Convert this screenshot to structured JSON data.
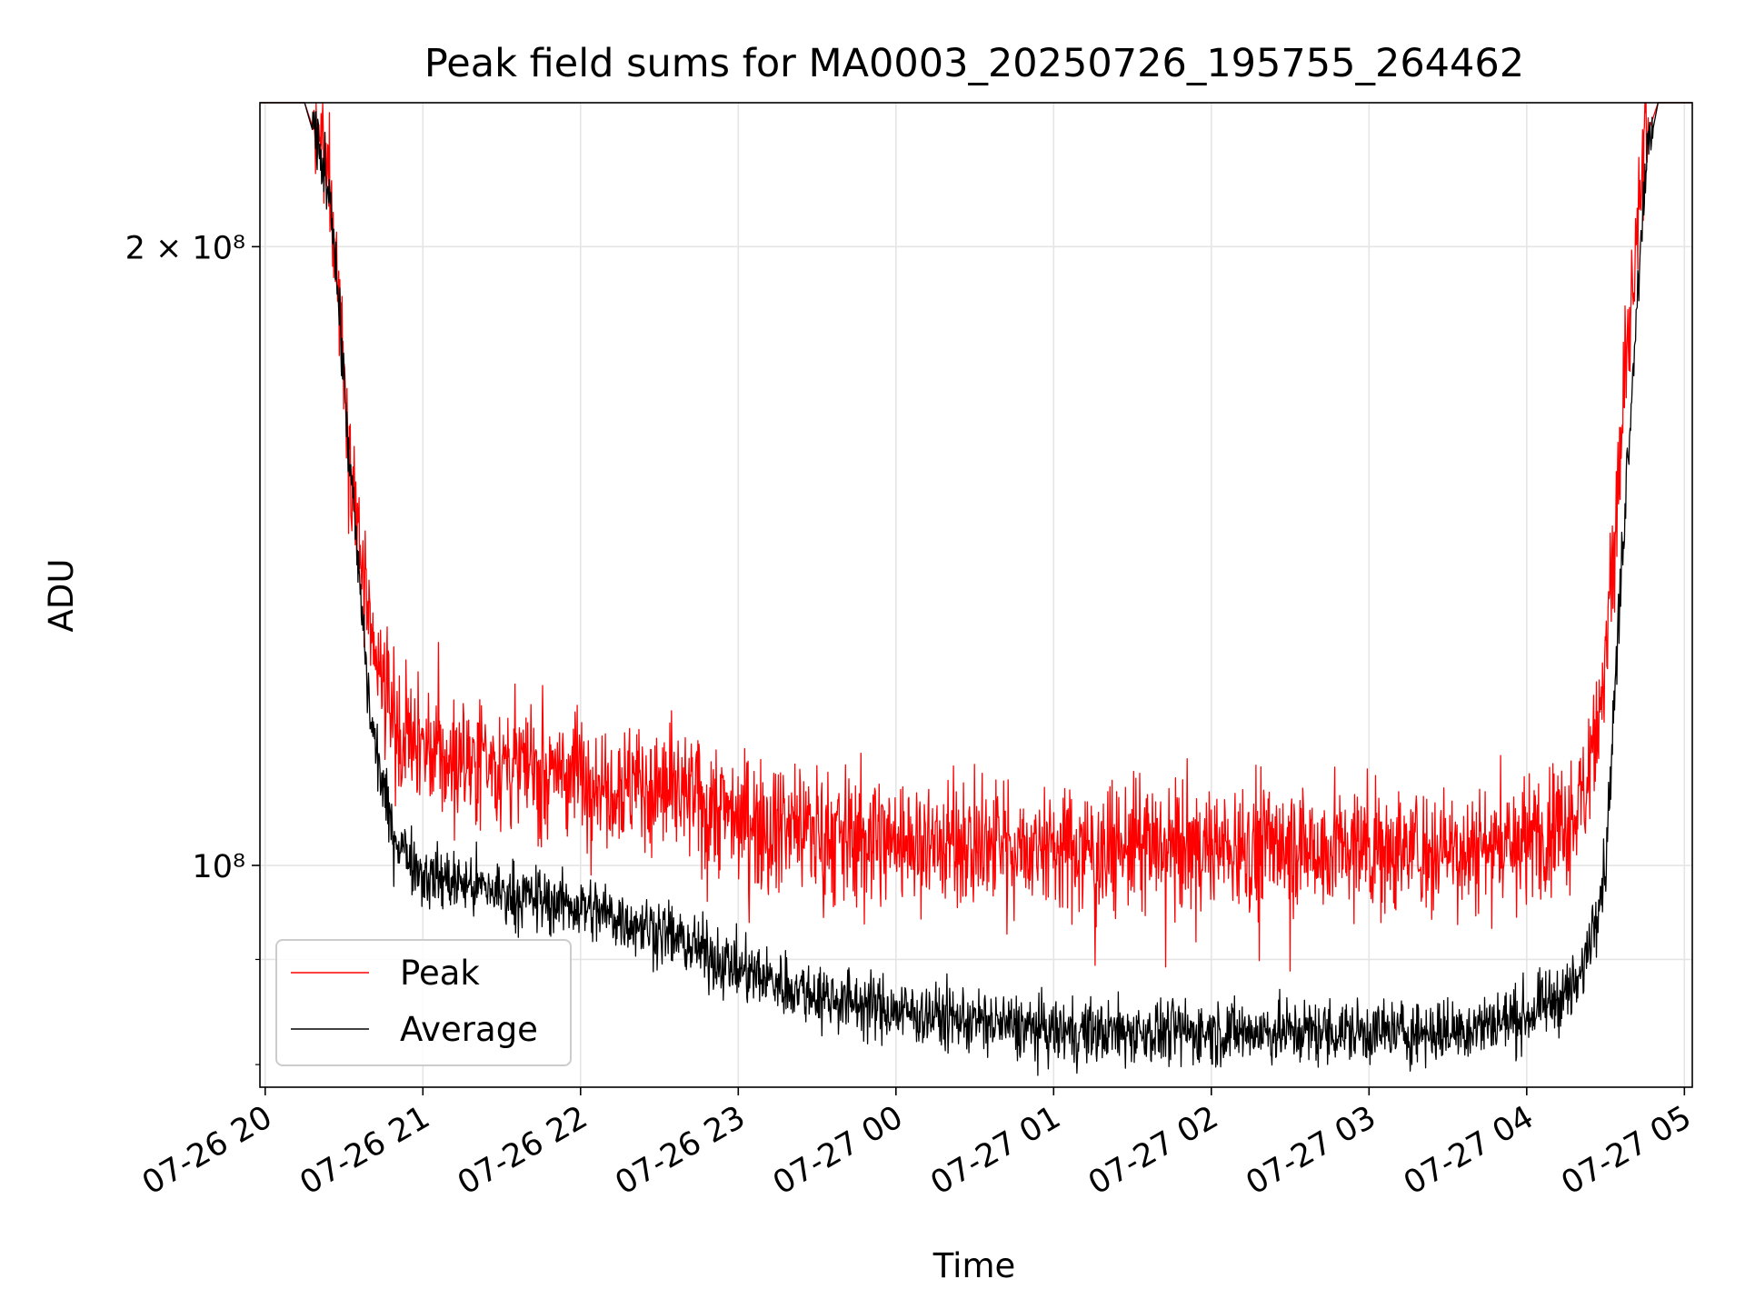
{
  "chart_data": {
    "type": "line",
    "title": "Peak field sums for MA0003_20250726_195755_264462",
    "xlabel": "Time",
    "ylabel": "ADU",
    "yscale": "log",
    "x_start": "2025-07-26 19:57:55",
    "x_end": "2025-07-27 04:59:00",
    "xlim": [
      "2025-07-26 19:58",
      "2025-07-27 05:03"
    ],
    "ylim": [
      78000000,
      235000000
    ],
    "x_ticks": [
      "07-26 20",
      "07-26 21",
      "07-26 22",
      "07-26 23",
      "07-27 00",
      "07-27 01",
      "07-27 02",
      "07-27 03",
      "07-27 04",
      "07-27 05"
    ],
    "y_tick_labels": [
      "2 × 10⁸",
      "10⁸"
    ],
    "grid": true,
    "legend_position": "lower-left",
    "series": [
      {
        "name": "Peak",
        "color": "#ff0000",
        "points": [
          [
            "2025-07-26 19:58",
            235000000
          ],
          [
            "2025-07-26 20:15",
            235000000
          ],
          [
            "2025-07-26 20:25",
            215000000
          ],
          [
            "2025-07-26 20:32",
            160000000
          ],
          [
            "2025-07-26 20:40",
            128000000
          ],
          [
            "2025-07-26 20:48",
            118000000
          ],
          [
            "2025-07-26 21:00",
            113000000
          ],
          [
            "2025-07-26 21:30",
            112000000
          ],
          [
            "2025-07-26 22:00",
            111000000
          ],
          [
            "2025-07-26 22:30",
            109000000
          ],
          [
            "2025-07-26 23:00",
            106000000
          ],
          [
            "2025-07-26 23:30",
            104000000
          ],
          [
            "2025-07-27 00:00",
            103000000
          ],
          [
            "2025-07-27 00:30",
            102500000
          ],
          [
            "2025-07-27 01:00",
            102000000
          ],
          [
            "2025-07-27 01:30",
            102000000
          ],
          [
            "2025-07-27 02:00",
            102000000
          ],
          [
            "2025-07-27 02:30",
            102000000
          ],
          [
            "2025-07-27 03:00",
            102000000
          ],
          [
            "2025-07-27 03:30",
            102000000
          ],
          [
            "2025-07-27 04:00",
            103000000
          ],
          [
            "2025-07-27 04:20",
            106000000
          ],
          [
            "2025-07-27 04:30",
            125000000
          ],
          [
            "2025-07-27 04:38",
            175000000
          ],
          [
            "2025-07-27 04:45",
            225000000
          ],
          [
            "2025-07-27 04:50",
            235000000
          ],
          [
            "2025-07-27 05:03",
            235000000
          ]
        ]
      },
      {
        "name": "Average",
        "color": "#000000",
        "points": [
          [
            "2025-07-26 19:58",
            235000000
          ],
          [
            "2025-07-26 20:15",
            235000000
          ],
          [
            "2025-07-26 20:25",
            212000000
          ],
          [
            "2025-07-26 20:32",
            158000000
          ],
          [
            "2025-07-26 20:40",
            118000000
          ],
          [
            "2025-07-26 20:48",
            104000000
          ],
          [
            "2025-07-26 21:00",
            99000000
          ],
          [
            "2025-07-26 21:30",
            97000000
          ],
          [
            "2025-07-26 22:00",
            95500000
          ],
          [
            "2025-07-26 22:30",
            93000000
          ],
          [
            "2025-07-26 23:00",
            89000000
          ],
          [
            "2025-07-26 23:30",
            86500000
          ],
          [
            "2025-07-27 00:00",
            85000000
          ],
          [
            "2025-07-27 00:30",
            84000000
          ],
          [
            "2025-07-27 01:00",
            83000000
          ],
          [
            "2025-07-27 01:30",
            83000000
          ],
          [
            "2025-07-27 02:00",
            83000000
          ],
          [
            "2025-07-27 02:30",
            83000000
          ],
          [
            "2025-07-27 03:00",
            83000000
          ],
          [
            "2025-07-27 03:30",
            83000000
          ],
          [
            "2025-07-27 04:00",
            84500000
          ],
          [
            "2025-07-27 04:20",
            87500000
          ],
          [
            "2025-07-27 04:30",
            100000000
          ],
          [
            "2025-07-27 04:38",
            155000000
          ],
          [
            "2025-07-27 04:45",
            218000000
          ],
          [
            "2025-07-27 04:50",
            235000000
          ],
          [
            "2025-07-27 05:03",
            235000000
          ]
        ]
      }
    ]
  }
}
